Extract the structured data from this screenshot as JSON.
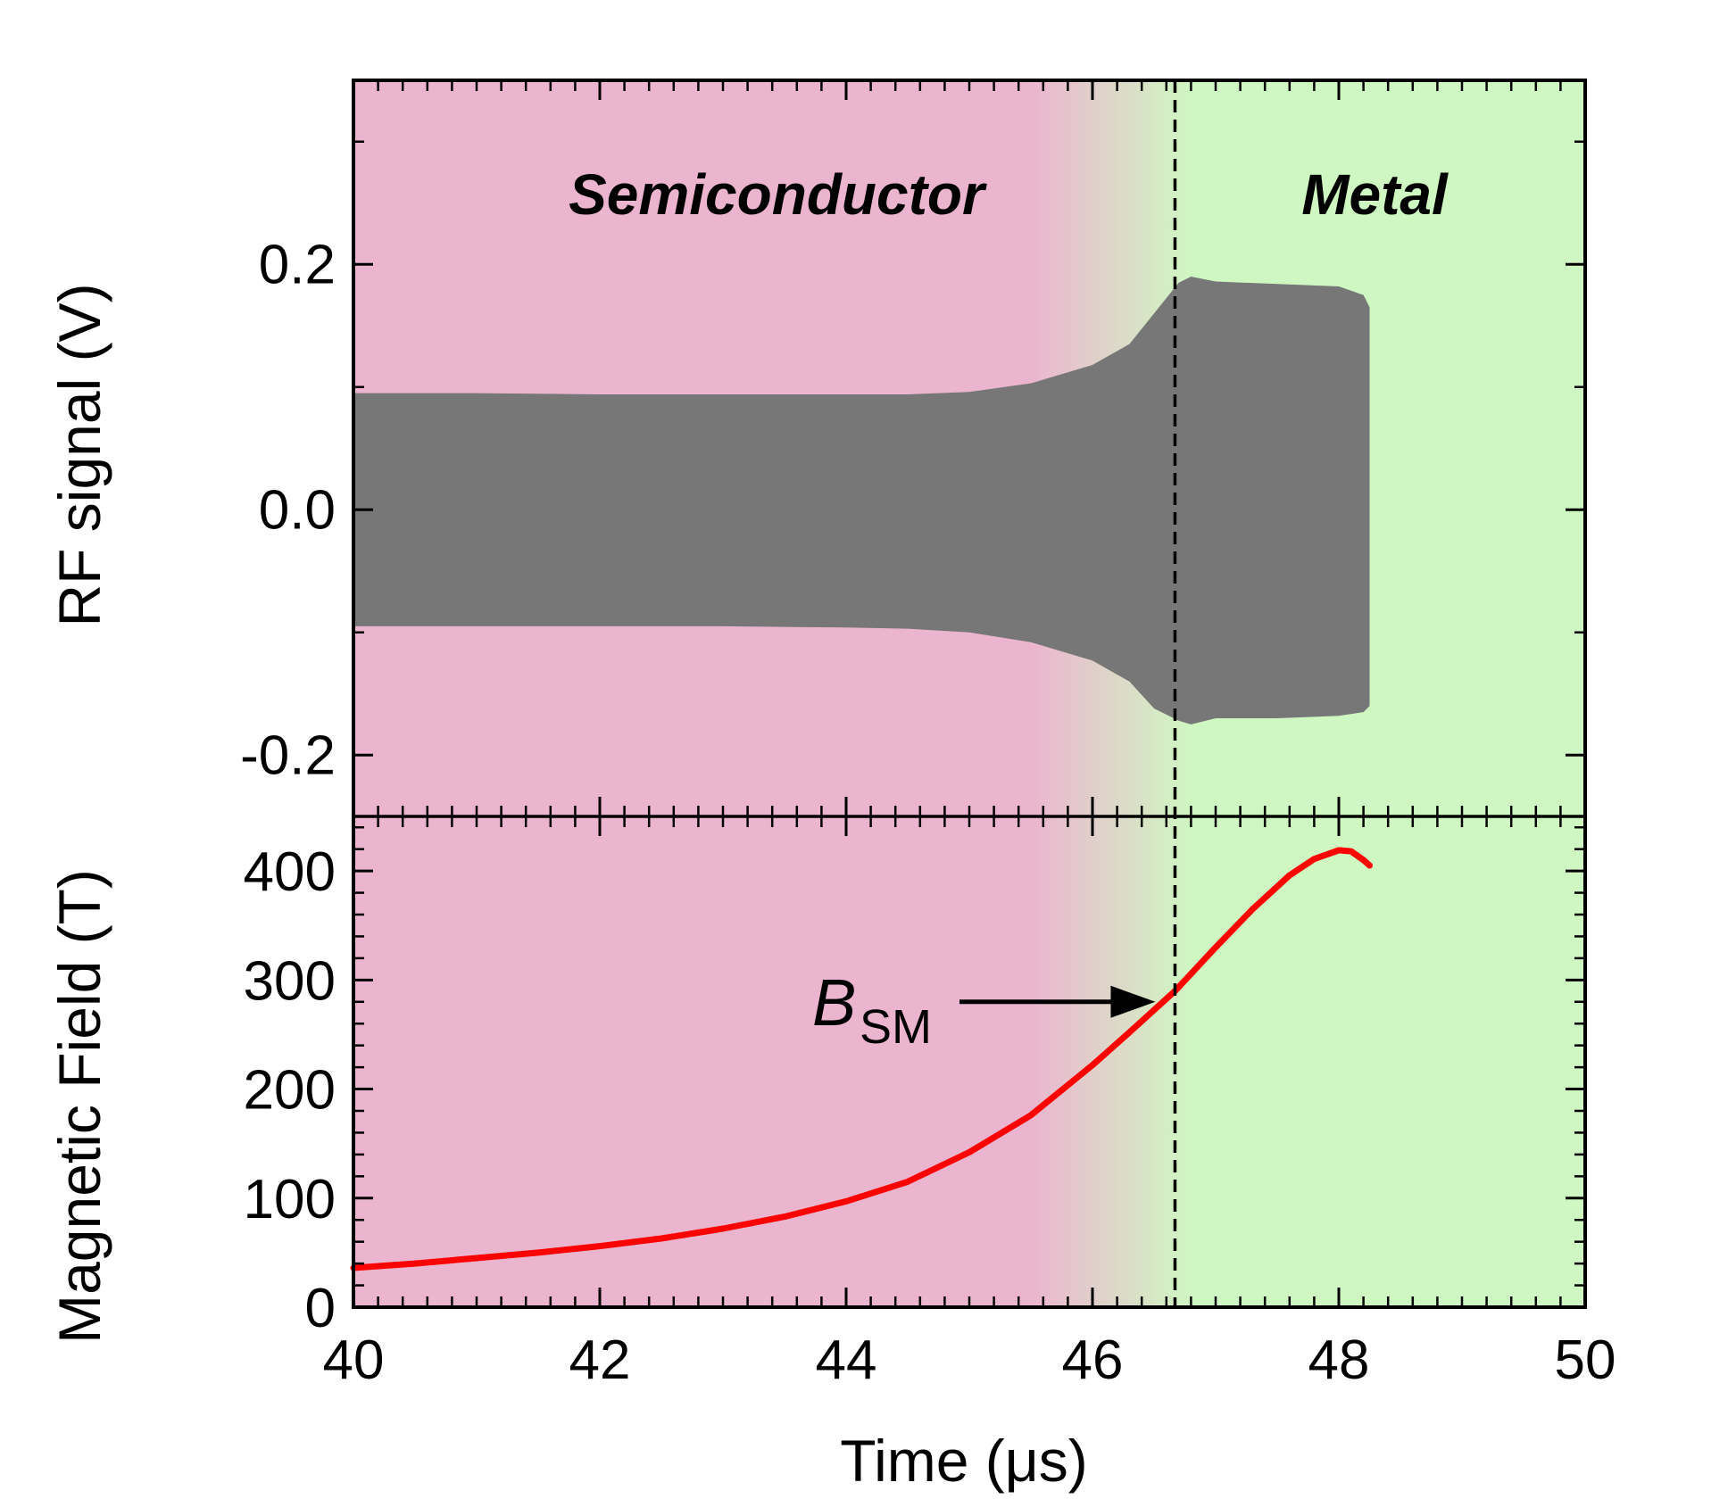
{
  "chart_data": {
    "type": "line",
    "xlabel": "Time (μs)",
    "xlim": [
      40,
      50
    ],
    "x_ticks": [
      "40",
      "42",
      "44",
      "46",
      "48",
      "50"
    ],
    "regions": [
      {
        "label": "Semiconductor",
        "x_range": [
          40,
          45.5
        ],
        "color": "#ecb5cf"
      },
      {
        "label": "Metal",
        "x_range": [
          46.8,
          50
        ],
        "color": "#cff7c2"
      }
    ],
    "transition_line_x": 46.67,
    "panels": [
      {
        "name": "top",
        "ylabel": "RF signal (V)",
        "ylim": [
          -0.25,
          0.35
        ],
        "y_ticks": [
          "0.2",
          "0.0",
          "-0.2"
        ],
        "y_tick_values": [
          0.2,
          0.0,
          -0.2
        ],
        "series": [
          {
            "color": "#777777",
            "style": "envelope",
            "x": [
              40.0,
              41.0,
              42.0,
              43.0,
              44.0,
              44.5,
              45.0,
              45.5,
              46.0,
              46.3,
              46.5,
              46.7,
              46.8,
              47.0,
              47.5,
              48.0,
              48.2,
              48.25
            ],
            "upper": [
              0.095,
              0.095,
              0.094,
              0.094,
              0.094,
              0.094,
              0.096,
              0.103,
              0.118,
              0.135,
              0.16,
              0.185,
              0.19,
              0.186,
              0.184,
              0.182,
              0.175,
              0.165
            ],
            "lower": [
              -0.095,
              -0.095,
              -0.095,
              -0.095,
              -0.096,
              -0.097,
              -0.1,
              -0.108,
              -0.123,
              -0.14,
              -0.162,
              -0.172,
              -0.175,
              -0.17,
              -0.17,
              -0.168,
              -0.165,
              -0.16
            ]
          }
        ]
      },
      {
        "name": "bottom",
        "ylabel": "Magnetic Field (T)",
        "ylim": [
          0,
          450
        ],
        "y_ticks": [
          "0",
          "100",
          "200",
          "300",
          "400"
        ],
        "y_tick_values": [
          0,
          100,
          200,
          300,
          400
        ],
        "series": [
          {
            "color": "#ff0000",
            "x": [
              40.0,
              40.5,
              41.0,
              41.5,
              42.0,
              42.5,
              43.0,
              43.5,
              44.0,
              44.5,
              45.0,
              45.5,
              46.0,
              46.3,
              46.67,
              47.0,
              47.3,
              47.6,
              47.8,
              48.0,
              48.1,
              48.2,
              48.25
            ],
            "y": [
              36,
              40,
              45,
              50,
              56,
              63,
              72,
              83,
              97,
              115,
              142,
              176,
              222,
              252,
              290,
              330,
              365,
              396,
              411,
              419,
              418,
              410,
              405
            ]
          }
        ],
        "annotation": {
          "text": "B",
          "subscript": "SM",
          "arrow_to": [
            46.67,
            280
          ]
        }
      }
    ]
  }
}
